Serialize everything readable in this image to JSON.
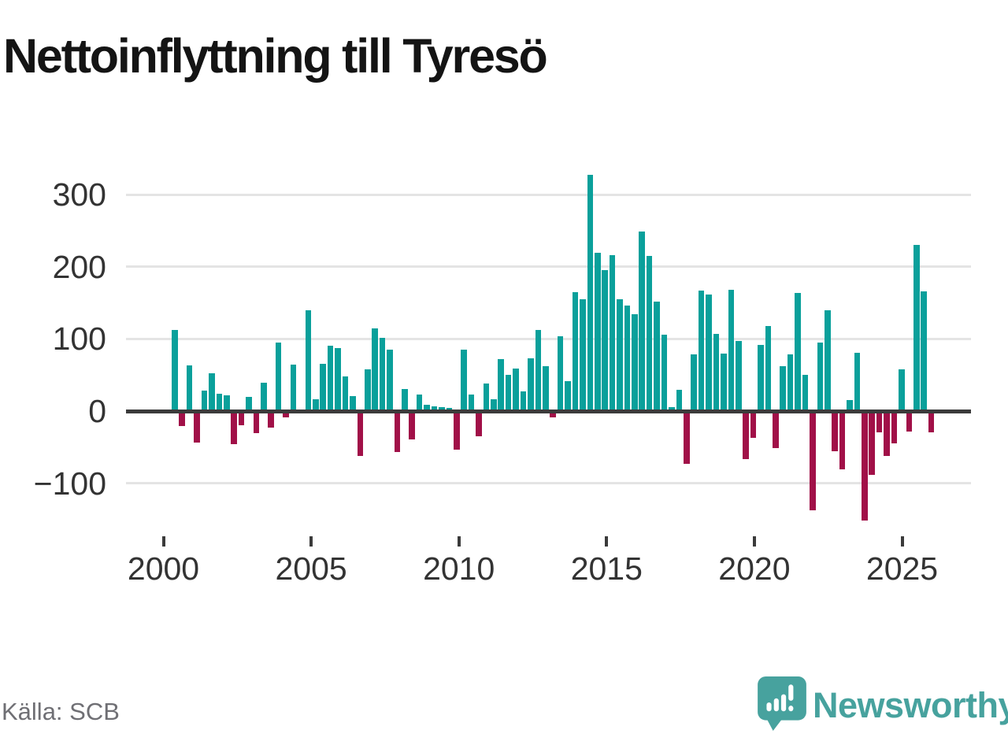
{
  "header": {
    "title": "Nettoinflyttning till Tyresö"
  },
  "footer": {
    "source": "Källa: SCB",
    "brand": "Newsworthy"
  },
  "colors": {
    "positive": "#0aa09b",
    "negative": "#a11048",
    "axis": "#3b3b3b",
    "gridline": "#e4e4e4",
    "tick_text": "#333333",
    "source_text": "#6f6f74",
    "brand_teal": "#47a29e"
  },
  "chart_data": {
    "type": "bar",
    "title": "Nettoinflyttning till Tyresö",
    "xlabel": "",
    "ylabel": "",
    "start_period": "2000 Q2",
    "period": "quarterly",
    "ylim": [
      -160,
      340
    ],
    "grid": "horizontal",
    "y_ticks": {
      "values": [
        300,
        200,
        100,
        0,
        -100
      ],
      "labels": [
        "300",
        "200",
        "100",
        "0",
        "−100"
      ]
    },
    "x_ticks": {
      "labels": [
        "2000",
        "2005",
        "2010",
        "2015",
        "2020",
        "2025"
      ]
    },
    "values": [
      113,
      -17,
      63,
      -40,
      28,
      52,
      24,
      22,
      -43,
      -16,
      20,
      -27,
      39,
      -20,
      95,
      -5,
      64,
      0,
      140,
      16,
      65,
      91,
      87,
      48,
      21,
      -59,
      58,
      115,
      102,
      85,
      -54,
      31,
      -36,
      23,
      9,
      7,
      5,
      4,
      -50,
      85,
      23,
      -32,
      38,
      16,
      72,
      50,
      59,
      27,
      73,
      113,
      62,
      -5,
      104,
      42,
      165,
      155,
      328,
      220,
      195,
      216,
      155,
      146,
      134,
      249,
      215,
      152,
      106,
      6,
      29,
      -70,
      79,
      167,
      162,
      107,
      80,
      168,
      97,
      -63,
      -34,
      92,
      118,
      -48,
      62,
      79,
      164,
      50,
      -134,
      95,
      140,
      -52,
      -78,
      15,
      81,
      -149,
      -85,
      -26,
      -59,
      -41,
      58,
      -25,
      230,
      166,
      -26
    ]
  }
}
